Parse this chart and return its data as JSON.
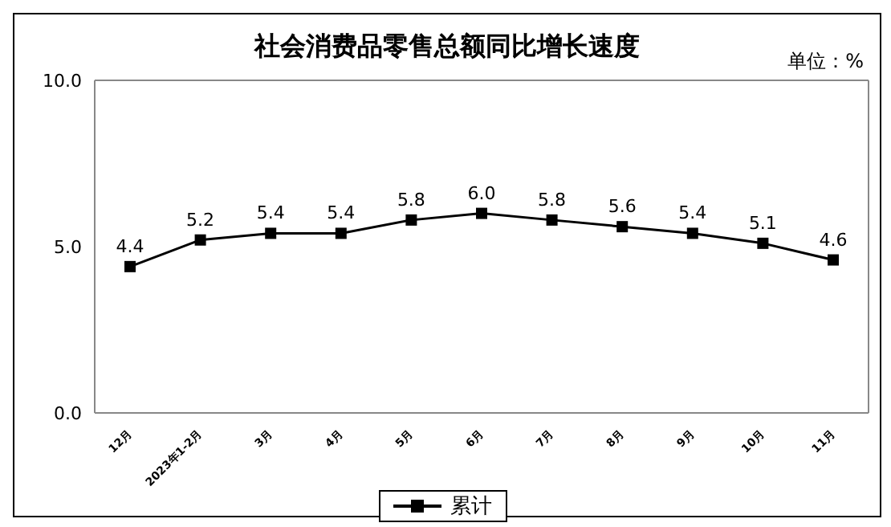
{
  "chart_data": {
    "type": "line",
    "title": "社会消费品零售总额同比增长速度",
    "annotations": [
      "单位：%"
    ],
    "categories": [
      "12月",
      "2023年1-2月",
      "3月",
      "4月",
      "5月",
      "6月",
      "7月",
      "8月",
      "9月",
      "10月",
      "11月"
    ],
    "series": [
      {
        "name": "累计",
        "color": "#000000",
        "values": [
          4.4,
          5.2,
          5.4,
          5.4,
          5.8,
          6.0,
          5.8,
          5.6,
          5.4,
          5.1,
          4.6
        ],
        "value_labels": [
          "4.4",
          "5.2",
          "5.4",
          "5.4",
          "5.8",
          "6.0",
          "5.8",
          "5.6",
          "5.4",
          "5.1",
          "4.6"
        ]
      }
    ],
    "ylim": [
      0,
      10
    ],
    "yticks": [
      {
        "value": 0,
        "label": "0.0"
      },
      {
        "value": 5,
        "label": "5.0"
      },
      {
        "value": 10,
        "label": "10.0"
      }
    ],
    "grid": false,
    "legend": "bottom",
    "marker": "square",
    "line_style": "solid"
  }
}
